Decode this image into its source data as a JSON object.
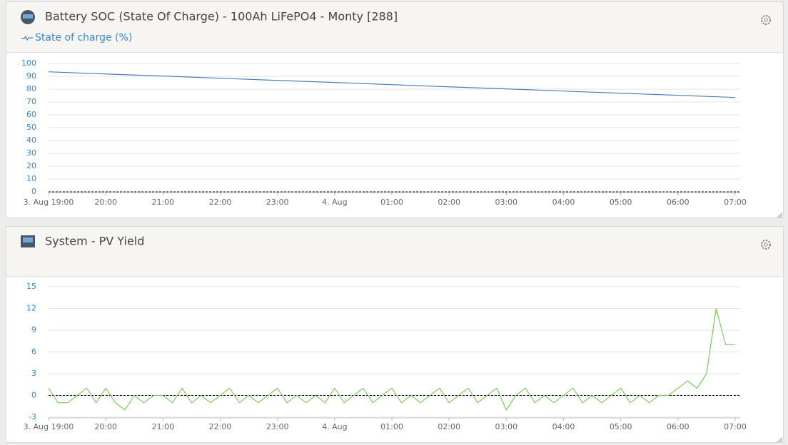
{
  "chart_data": [
    {
      "type": "line",
      "title": "Battery SOC (State Of Charge) - 100Ah LiFePO4 - Monty [288]",
      "categories": [
        "3. Aug 19:00",
        "20:00",
        "21:00",
        "22:00",
        "23:00",
        "4. Aug",
        "01:00",
        "02:00",
        "03:00",
        "04:00",
        "05:00",
        "06:00",
        "07:00"
      ],
      "series": [
        {
          "name": "State of charge (%)",
          "color": "#4a80b8",
          "values": [
            93.5,
            91.8,
            90.2,
            88.5,
            86.8,
            85.2,
            83.5,
            81.8,
            80.2,
            78.5,
            76.8,
            75.2,
            73.5
          ]
        }
      ],
      "ylim": [
        0,
        100
      ],
      "yticks": [
        0,
        10,
        20,
        30,
        40,
        50,
        60,
        70,
        80,
        90,
        100
      ],
      "grid": true
    },
    {
      "type": "line",
      "title": "System - PV Yield",
      "categories": [
        "3. Aug 19:00",
        null,
        null,
        null,
        null,
        null,
        "20:00",
        null,
        null,
        null,
        null,
        null,
        "21:00",
        null,
        null,
        null,
        null,
        null,
        "22:00",
        null,
        null,
        null,
        null,
        null,
        "23:00",
        null,
        null,
        null,
        null,
        null,
        "4. Aug",
        null,
        null,
        null,
        null,
        null,
        "01:00",
        null,
        null,
        null,
        null,
        null,
        "02:00",
        null,
        null,
        null,
        null,
        null,
        "03:00",
        null,
        null,
        null,
        null,
        null,
        "04:00",
        null,
        null,
        null,
        null,
        null,
        "05:00",
        null,
        null,
        null,
        null,
        null,
        "06:00",
        null,
        null,
        null,
        null,
        null,
        "07:00"
      ],
      "series": [
        {
          "color": "#7cc862",
          "values": [
            1,
            -1,
            -1,
            0,
            1,
            -1,
            1,
            -1,
            -2,
            0,
            -1,
            0,
            0,
            -1,
            1,
            -1,
            0,
            -1,
            0,
            1,
            -1,
            0,
            -1,
            0,
            1,
            -1,
            0,
            -1,
            0,
            -1,
            1,
            -1,
            0,
            1,
            -1,
            0,
            1,
            -1,
            0,
            -1,
            0,
            1,
            -1,
            0,
            1,
            -1,
            0,
            1,
            -2,
            0,
            1,
            -1,
            0,
            -1,
            0,
            1,
            -1,
            0,
            -1,
            0,
            1,
            -1,
            0,
            -1,
            0,
            0,
            1,
            2,
            1,
            3,
            12,
            7,
            7
          ]
        }
      ],
      "ylim": [
        -3,
        15
      ],
      "yticks": [
        -3,
        0,
        3,
        6,
        9,
        12,
        15
      ],
      "grid": true
    }
  ]
}
